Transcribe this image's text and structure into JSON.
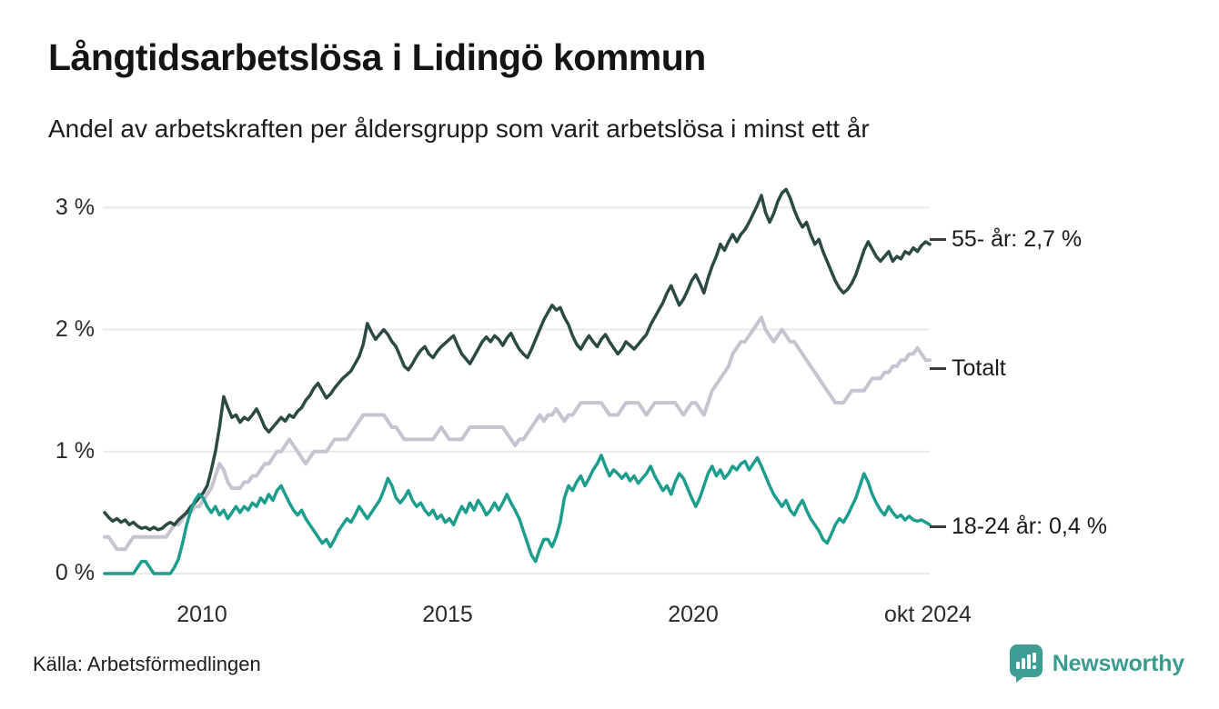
{
  "header": {
    "title": "Långtidsarbetslösa i Lidingö kommun",
    "subtitle": "Andel av arbetskraften per åldersgrupp som varit arbetslösa i minst ett år"
  },
  "footer": {
    "source": "Källa: Arbetsförmedlingen",
    "brand": "Newsworthy"
  },
  "colors": {
    "grid": "#e9e9ec",
    "label_dash": "#3c3c3c",
    "brand_teal": "#3a9b90"
  },
  "chart_data": {
    "type": "line",
    "title": "Långtidsarbetslösa i Lidingö kommun",
    "subtitle": "Andel av arbetskraften per åldersgrupp som varit arbetslösa i minst ett år",
    "grid": true,
    "legend_position": "right-of-line-ends",
    "x_axis": {
      "start": "2008-01",
      "end": "2024-10",
      "frequency": "monthly",
      "tick_labels": [
        "2010",
        "2015",
        "2020",
        "okt 2024"
      ],
      "tick_positions_years": [
        2010,
        2015,
        2020,
        2024.75
      ]
    },
    "y_axis": {
      "unit": "%",
      "range": [
        0,
        3.3
      ],
      "ticks": [
        0,
        1,
        2,
        3
      ],
      "tick_labels": [
        "0 %",
        "1 %",
        "2 %",
        "3 %"
      ]
    },
    "series": [
      {
        "name": "55- år",
        "label": "55- år: 2,7 %",
        "latest_value": "2,7 %",
        "color": "#2b4a43",
        "values": [
          0.5,
          0.46,
          0.43,
          0.45,
          0.42,
          0.44,
          0.4,
          0.42,
          0.39,
          0.37,
          0.38,
          0.36,
          0.38,
          0.36,
          0.37,
          0.4,
          0.42,
          0.4,
          0.44,
          0.47,
          0.5,
          0.55,
          0.58,
          0.62,
          0.66,
          0.72,
          0.85,
          1.0,
          1.2,
          1.45,
          1.36,
          1.28,
          1.3,
          1.24,
          1.28,
          1.26,
          1.3,
          1.35,
          1.28,
          1.2,
          1.16,
          1.2,
          1.24,
          1.28,
          1.25,
          1.3,
          1.28,
          1.33,
          1.36,
          1.42,
          1.46,
          1.52,
          1.56,
          1.5,
          1.44,
          1.47,
          1.52,
          1.56,
          1.6,
          1.63,
          1.66,
          1.72,
          1.78,
          1.88,
          2.05,
          1.98,
          1.92,
          1.96,
          2.0,
          1.96,
          1.9,
          1.86,
          1.78,
          1.7,
          1.67,
          1.72,
          1.78,
          1.83,
          1.86,
          1.8,
          1.77,
          1.82,
          1.86,
          1.89,
          1.92,
          1.95,
          1.87,
          1.8,
          1.76,
          1.72,
          1.78,
          1.84,
          1.9,
          1.94,
          1.9,
          1.95,
          1.92,
          1.87,
          1.93,
          1.97,
          1.9,
          1.84,
          1.8,
          1.77,
          1.84,
          1.92,
          2.0,
          2.08,
          2.14,
          2.2,
          2.16,
          2.18,
          2.1,
          2.04,
          1.95,
          1.88,
          1.84,
          1.9,
          1.95,
          1.9,
          1.86,
          1.92,
          1.96,
          1.9,
          1.85,
          1.8,
          1.84,
          1.9,
          1.87,
          1.84,
          1.88,
          1.92,
          1.96,
          2.04,
          2.1,
          2.16,
          2.22,
          2.3,
          2.36,
          2.28,
          2.2,
          2.25,
          2.32,
          2.4,
          2.45,
          2.38,
          2.3,
          2.42,
          2.52,
          2.6,
          2.7,
          2.65,
          2.72,
          2.78,
          2.72,
          2.78,
          2.82,
          2.88,
          2.95,
          3.02,
          3.1,
          2.96,
          2.88,
          2.95,
          3.05,
          3.12,
          3.15,
          3.08,
          2.98,
          2.9,
          2.84,
          2.88,
          2.78,
          2.7,
          2.74,
          2.64,
          2.56,
          2.48,
          2.4,
          2.34,
          2.3,
          2.33,
          2.38,
          2.45,
          2.55,
          2.65,
          2.72,
          2.66,
          2.6,
          2.56,
          2.6,
          2.64,
          2.56,
          2.6,
          2.58,
          2.64,
          2.62,
          2.67,
          2.64,
          2.69,
          2.72,
          2.7
        ]
      },
      {
        "name": "Totalt",
        "label": "Totalt",
        "latest_value": "",
        "color": "#c6c4d1",
        "values": [
          0.3,
          0.3,
          0.25,
          0.2,
          0.2,
          0.2,
          0.25,
          0.3,
          0.3,
          0.3,
          0.3,
          0.3,
          0.3,
          0.3,
          0.3,
          0.3,
          0.35,
          0.4,
          0.4,
          0.45,
          0.5,
          0.5,
          0.55,
          0.55,
          0.6,
          0.65,
          0.7,
          0.8,
          0.9,
          0.85,
          0.75,
          0.7,
          0.7,
          0.7,
          0.75,
          0.75,
          0.8,
          0.8,
          0.85,
          0.9,
          0.9,
          0.95,
          1.0,
          1.0,
          1.05,
          1.1,
          1.05,
          1.0,
          0.95,
          0.9,
          0.95,
          1.0,
          1.0,
          1.0,
          1.0,
          1.05,
          1.1,
          1.1,
          1.1,
          1.1,
          1.15,
          1.2,
          1.25,
          1.3,
          1.3,
          1.3,
          1.3,
          1.3,
          1.3,
          1.25,
          1.2,
          1.2,
          1.15,
          1.1,
          1.1,
          1.1,
          1.1,
          1.1,
          1.1,
          1.1,
          1.1,
          1.15,
          1.2,
          1.15,
          1.1,
          1.1,
          1.1,
          1.1,
          1.15,
          1.2,
          1.2,
          1.2,
          1.2,
          1.2,
          1.2,
          1.2,
          1.2,
          1.2,
          1.15,
          1.1,
          1.05,
          1.1,
          1.1,
          1.15,
          1.2,
          1.25,
          1.3,
          1.25,
          1.3,
          1.3,
          1.35,
          1.3,
          1.25,
          1.3,
          1.3,
          1.35,
          1.4,
          1.4,
          1.4,
          1.4,
          1.4,
          1.4,
          1.35,
          1.3,
          1.3,
          1.3,
          1.35,
          1.4,
          1.4,
          1.4,
          1.4,
          1.35,
          1.3,
          1.35,
          1.4,
          1.4,
          1.4,
          1.4,
          1.4,
          1.4,
          1.35,
          1.3,
          1.35,
          1.4,
          1.4,
          1.35,
          1.3,
          1.4,
          1.5,
          1.55,
          1.6,
          1.65,
          1.7,
          1.8,
          1.85,
          1.9,
          1.9,
          1.95,
          2.0,
          2.05,
          2.1,
          2.0,
          1.95,
          1.9,
          1.95,
          2.0,
          1.95,
          1.9,
          1.9,
          1.85,
          1.8,
          1.75,
          1.7,
          1.65,
          1.6,
          1.55,
          1.5,
          1.45,
          1.4,
          1.4,
          1.4,
          1.45,
          1.5,
          1.5,
          1.5,
          1.5,
          1.55,
          1.6,
          1.6,
          1.6,
          1.65,
          1.65,
          1.7,
          1.7,
          1.75,
          1.75,
          1.8,
          1.8,
          1.85,
          1.8,
          1.75,
          1.75
        ]
      },
      {
        "name": "18-24 år",
        "label": "18-24 år: 0,4 %",
        "latest_value": "0,4 %",
        "color": "#1d9d8d",
        "values": [
          0.0,
          0.0,
          0.0,
          0.0,
          0.0,
          0.0,
          0.0,
          0.0,
          0.05,
          0.1,
          0.1,
          0.05,
          0.0,
          0.0,
          0.0,
          0.0,
          0.0,
          0.05,
          0.12,
          0.25,
          0.4,
          0.52,
          0.6,
          0.65,
          0.62,
          0.55,
          0.5,
          0.55,
          0.48,
          0.52,
          0.45,
          0.5,
          0.55,
          0.5,
          0.55,
          0.52,
          0.58,
          0.55,
          0.62,
          0.58,
          0.65,
          0.6,
          0.68,
          0.72,
          0.65,
          0.58,
          0.52,
          0.48,
          0.52,
          0.45,
          0.4,
          0.35,
          0.3,
          0.25,
          0.28,
          0.22,
          0.28,
          0.35,
          0.4,
          0.45,
          0.42,
          0.48,
          0.55,
          0.5,
          0.45,
          0.5,
          0.55,
          0.6,
          0.68,
          0.78,
          0.72,
          0.62,
          0.58,
          0.62,
          0.68,
          0.6,
          0.55,
          0.58,
          0.52,
          0.48,
          0.52,
          0.45,
          0.48,
          0.42,
          0.45,
          0.4,
          0.48,
          0.55,
          0.5,
          0.58,
          0.52,
          0.6,
          0.55,
          0.48,
          0.52,
          0.58,
          0.52,
          0.58,
          0.65,
          0.58,
          0.52,
          0.45,
          0.35,
          0.25,
          0.15,
          0.1,
          0.2,
          0.28,
          0.28,
          0.22,
          0.3,
          0.42,
          0.62,
          0.72,
          0.68,
          0.75,
          0.8,
          0.72,
          0.78,
          0.85,
          0.9,
          0.97,
          0.88,
          0.8,
          0.85,
          0.82,
          0.78,
          0.82,
          0.76,
          0.8,
          0.74,
          0.78,
          0.82,
          0.88,
          0.8,
          0.74,
          0.68,
          0.72,
          0.65,
          0.75,
          0.82,
          0.78,
          0.7,
          0.62,
          0.55,
          0.62,
          0.72,
          0.82,
          0.88,
          0.8,
          0.85,
          0.78,
          0.82,
          0.88,
          0.85,
          0.9,
          0.92,
          0.85,
          0.9,
          0.95,
          0.88,
          0.8,
          0.72,
          0.65,
          0.6,
          0.55,
          0.6,
          0.52,
          0.48,
          0.55,
          0.6,
          0.52,
          0.45,
          0.4,
          0.35,
          0.28,
          0.25,
          0.32,
          0.4,
          0.45,
          0.42,
          0.48,
          0.55,
          0.62,
          0.72,
          0.82,
          0.75,
          0.65,
          0.58,
          0.52,
          0.48,
          0.55,
          0.5,
          0.46,
          0.48,
          0.44,
          0.47,
          0.44,
          0.43,
          0.44,
          0.42,
          0.4
        ]
      }
    ]
  }
}
